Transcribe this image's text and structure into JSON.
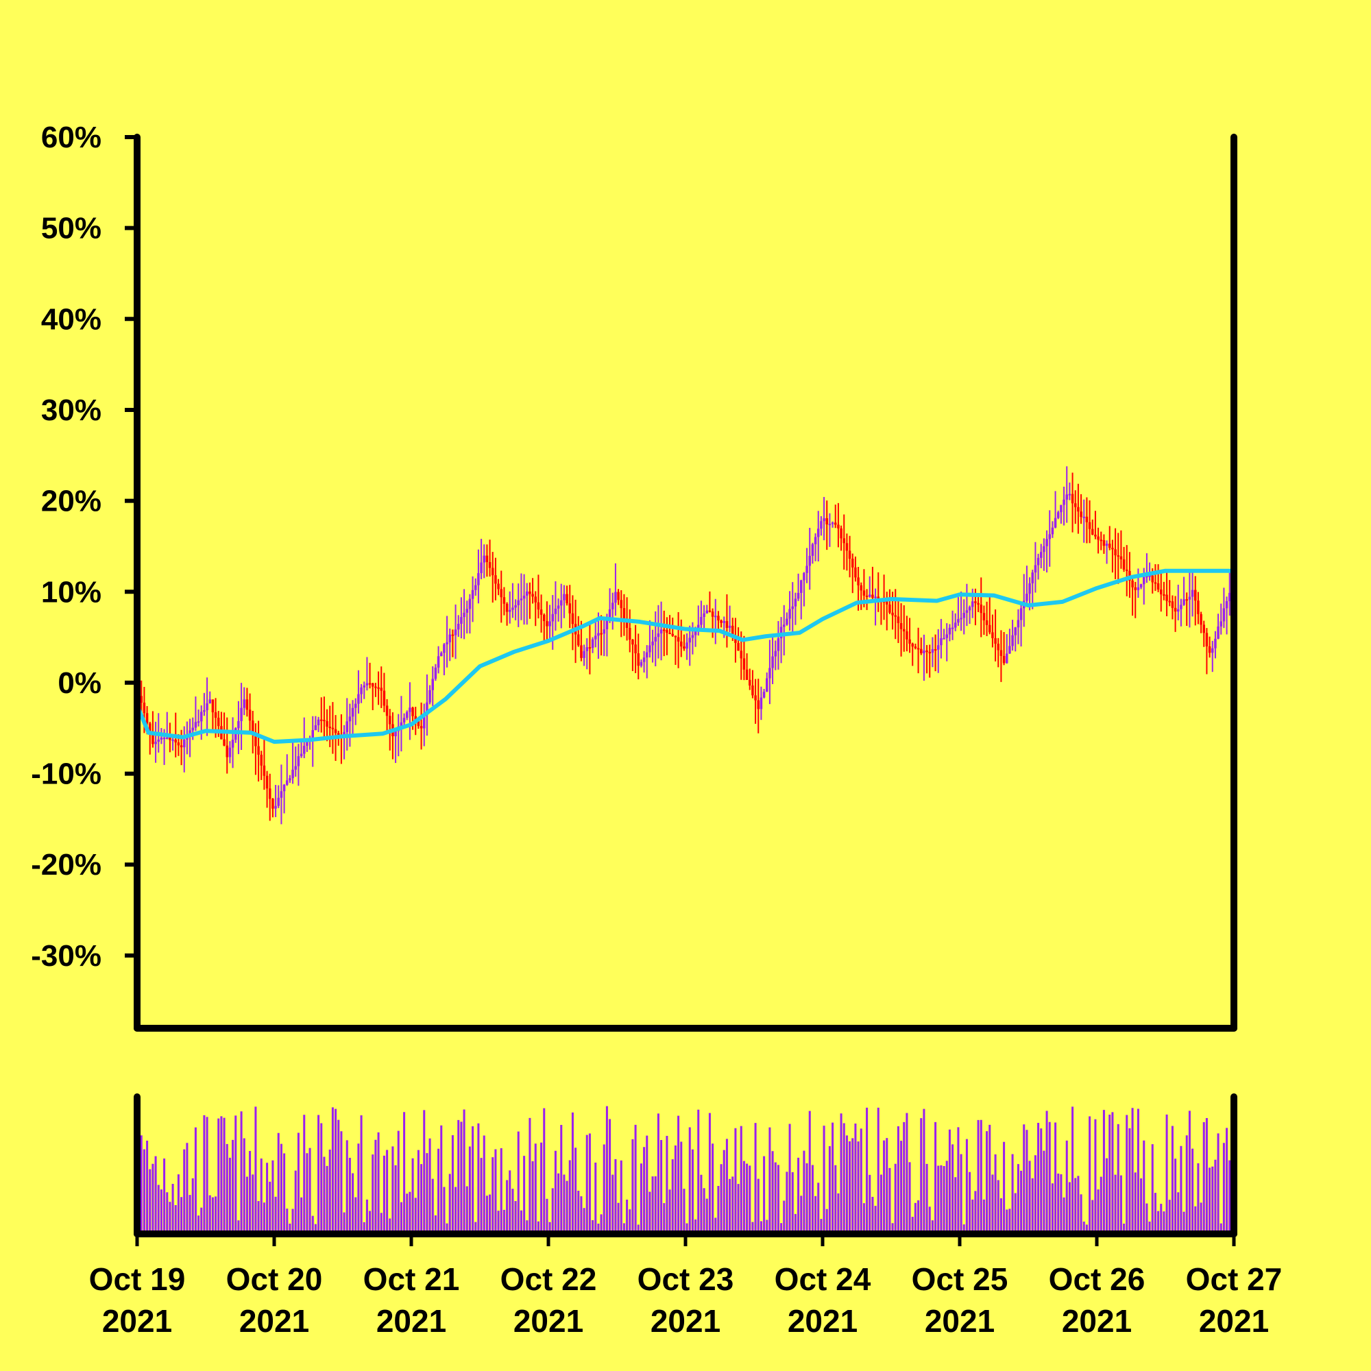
{
  "chart_data": {
    "type": "candlestick",
    "background": "#ffff5a",
    "colors": {
      "axis": "#000000",
      "up": "#9a1ef0",
      "down": "#ff0000",
      "moving_average": "#1ec8f0",
      "volume": "#9a1ef0"
    },
    "y_axis": {
      "range": [
        -38,
        60
      ],
      "ticks": [
        60,
        50,
        40,
        30,
        20,
        10,
        0,
        -10,
        -20,
        -30
      ],
      "tick_labels": [
        "60%",
        "50%",
        "40%",
        "30%",
        "20%",
        "10%",
        "0%",
        "-10%",
        "-20%",
        "-30%"
      ]
    },
    "x_axis": {
      "range": [
        "2021-10-19",
        "2021-10-27"
      ],
      "ticks": [
        "2021-10-19",
        "2021-10-20",
        "2021-10-21",
        "2021-10-22",
        "2021-10-23",
        "2021-10-24",
        "2021-10-25",
        "2021-10-26",
        "2021-10-27"
      ],
      "tick_labels": [
        [
          "Oct 19",
          "2021"
        ],
        [
          "Oct 20",
          "2021"
        ],
        [
          "Oct 21",
          "2021"
        ],
        [
          "Oct 22",
          "2021"
        ],
        [
          "Oct 23",
          "2021"
        ],
        [
          "Oct 24",
          "2021"
        ],
        [
          "Oct 25",
          "2021"
        ],
        [
          "Oct 26",
          "2021"
        ],
        [
          "Oct 27",
          "2021"
        ]
      ]
    },
    "close_path": [
      [
        "2021-10-19 00:00",
        0
      ],
      [
        "2021-10-19 03:00",
        -7
      ],
      [
        "2021-10-19 05:00",
        -6
      ],
      [
        "2021-10-19 08:00",
        -7
      ],
      [
        "2021-10-19 13:00",
        -2
      ],
      [
        "2021-10-19 16:00",
        -8
      ],
      [
        "2021-10-19 19:00",
        -2
      ],
      [
        "2021-10-20 00:00",
        -14
      ],
      [
        "2021-10-20 04:00",
        -9
      ],
      [
        "2021-10-20 08:00",
        -4
      ],
      [
        "2021-10-20 12:00",
        -6
      ],
      [
        "2021-10-20 16:00",
        0
      ],
      [
        "2021-10-20 19:00",
        -1
      ],
      [
        "2021-10-20 21:00",
        -6
      ],
      [
        "2021-10-21 00:00",
        -3
      ],
      [
        "2021-10-21 02:00",
        -5
      ],
      [
        "2021-10-21 05:00",
        3
      ],
      [
        "2021-10-21 10:00",
        8
      ],
      [
        "2021-10-21 13:00",
        14
      ],
      [
        "2021-10-21 17:00",
        8
      ],
      [
        "2021-10-21 21:00",
        10
      ],
      [
        "2021-10-22 00:00",
        6
      ],
      [
        "2021-10-22 03:00",
        10
      ],
      [
        "2021-10-22 06:00",
        3
      ],
      [
        "2021-10-22 10:00",
        6
      ],
      [
        "2021-10-22 12:00",
        10
      ],
      [
        "2021-10-22 16:00",
        2
      ],
      [
        "2021-10-22 20:00",
        6
      ],
      [
        "2021-10-23 00:00",
        4
      ],
      [
        "2021-10-23 04:00",
        8
      ],
      [
        "2021-10-23 08:00",
        6
      ],
      [
        "2021-10-23 13:00",
        -3
      ],
      [
        "2021-10-23 17:00",
        6
      ],
      [
        "2021-10-23 20:00",
        10
      ],
      [
        "2021-10-24 00:00",
        18
      ],
      [
        "2021-10-24 03:00",
        17
      ],
      [
        "2021-10-24 07:00",
        10
      ],
      [
        "2021-10-24 11:00",
        9
      ],
      [
        "2021-10-24 16:00",
        4
      ],
      [
        "2021-10-24 19:00",
        3
      ],
      [
        "2021-10-25 00:00",
        7
      ],
      [
        "2021-10-25 03:00",
        9
      ],
      [
        "2021-10-25 08:00",
        2
      ],
      [
        "2021-10-25 13:00",
        12
      ],
      [
        "2021-10-25 19:00",
        21
      ],
      [
        "2021-10-26 00:00",
        16
      ],
      [
        "2021-10-26 04:00",
        14
      ],
      [
        "2021-10-26 07:00",
        10
      ],
      [
        "2021-10-26 09:00",
        12
      ],
      [
        "2021-10-26 14:00",
        8
      ],
      [
        "2021-10-26 17:00",
        10
      ],
      [
        "2021-10-26 20:00",
        3
      ],
      [
        "2021-10-27 00:00",
        11
      ]
    ],
    "moving_average": [
      [
        "2021-10-19 00:00",
        -2.5
      ],
      [
        "2021-10-19 02:00",
        -5.5
      ],
      [
        "2021-10-19 08:00",
        -6
      ],
      [
        "2021-10-19 12:00",
        -5.3
      ],
      [
        "2021-10-19 20:00",
        -5.5
      ],
      [
        "2021-10-20 00:00",
        -6.5
      ],
      [
        "2021-10-20 06:00",
        -6.3
      ],
      [
        "2021-10-20 12:00",
        -5.9
      ],
      [
        "2021-10-20 19:00",
        -5.6
      ],
      [
        "2021-10-21 00:00",
        -4.6
      ],
      [
        "2021-10-21 06:00",
        -1.8
      ],
      [
        "2021-10-21 12:00",
        1.8
      ],
      [
        "2021-10-21 18:00",
        3.4
      ],
      [
        "2021-10-22 00:00",
        4.6
      ],
      [
        "2021-10-22 06:00",
        6.2
      ],
      [
        "2021-10-22 09:00",
        7.1
      ],
      [
        "2021-10-22 16:00",
        6.7
      ],
      [
        "2021-10-23 00:00",
        5.9
      ],
      [
        "2021-10-23 06:00",
        5.7
      ],
      [
        "2021-10-23 10:00",
        4.7
      ],
      [
        "2021-10-23 14:00",
        5.1
      ],
      [
        "2021-10-23 20:00",
        5.5
      ],
      [
        "2021-10-24 00:00",
        7.0
      ],
      [
        "2021-10-24 06:00",
        8.8
      ],
      [
        "2021-10-24 12:00",
        9.2
      ],
      [
        "2021-10-24 20:00",
        9.0
      ],
      [
        "2021-10-25 00:00",
        9.7
      ],
      [
        "2021-10-25 06:00",
        9.6
      ],
      [
        "2021-10-25 12:00",
        8.5
      ],
      [
        "2021-10-25 18:00",
        8.9
      ],
      [
        "2021-10-26 00:00",
        10.4
      ],
      [
        "2021-10-26 06:00",
        11.6
      ],
      [
        "2021-10-26 12:00",
        12.3
      ],
      [
        "2021-10-26 18:00",
        12.3
      ],
      [
        "2021-10-27 00:00",
        12.3
      ]
    ],
    "volume_range": [
      0,
      15
    ],
    "candle_interval_hours": 0.5
  }
}
